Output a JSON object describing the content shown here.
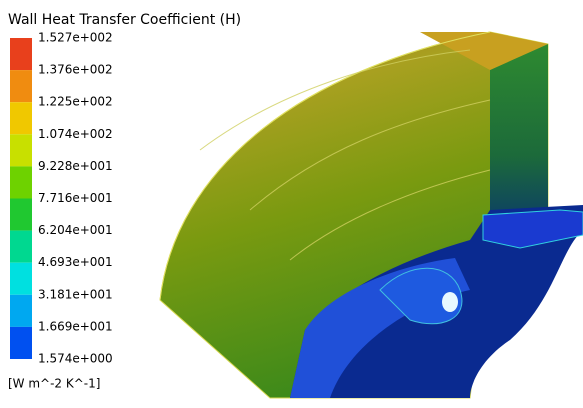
{
  "title": "Wall Heat Transfer Coefficient (H)",
  "legend": {
    "labels": [
      "1.527e+002",
      "1.376e+002",
      "1.225e+002",
      "1.074e+002",
      "9.228e+001",
      "7.716e+001",
      "6.204e+001",
      "4.693e+001",
      "3.181e+001",
      "1.669e+001",
      "1.574e+000"
    ],
    "unit": "[W m^-2 K^-1]"
  }
}
